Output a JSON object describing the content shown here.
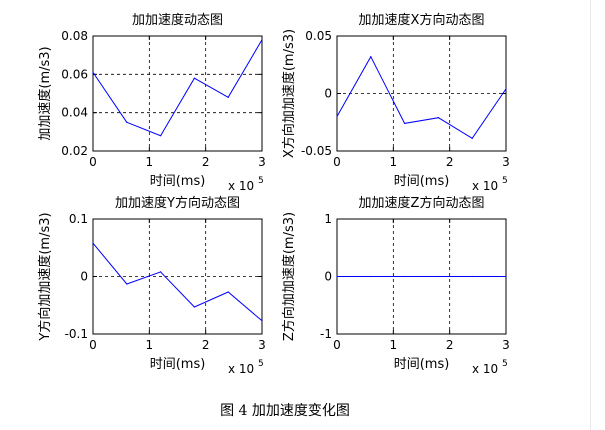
{
  "figure": {
    "caption": "图 4  加加速度变化图"
  },
  "chart_data": [
    {
      "type": "line",
      "title": "加加速度动态图",
      "xlabel": "时间(ms)",
      "ylabel": "加加速度(m/s3)",
      "x_exponent_base": "x 10",
      "x_exponent_power": "5",
      "xlim": [
        0,
        3
      ],
      "ylim": [
        0.02,
        0.08
      ],
      "xticks": [
        0,
        1,
        2,
        3
      ],
      "yticks": [
        0.02,
        0.04,
        0.06,
        0.08
      ],
      "xtick_labels": [
        "0",
        "1",
        "2",
        "3"
      ],
      "ytick_labels": [
        "0.02",
        "0.04",
        "0.06",
        "0.08"
      ],
      "grid": true,
      "series": [
        {
          "name": "加加速度",
          "color": "#0000ff",
          "x": [
            0,
            0.6,
            1.2,
            1.8,
            2.4,
            3.0
          ],
          "y": [
            0.061,
            0.035,
            0.028,
            0.058,
            0.048,
            0.078
          ]
        }
      ]
    },
    {
      "type": "line",
      "title": "加加速度X方向动态图",
      "xlabel": "时间(ms)",
      "ylabel": "X方向加加速度(m/s3)",
      "x_exponent_base": "x 10",
      "x_exponent_power": "5",
      "xlim": [
        0,
        3
      ],
      "ylim": [
        -0.05,
        0.05
      ],
      "xticks": [
        0,
        1,
        2,
        3
      ],
      "yticks": [
        -0.05,
        0,
        0.05
      ],
      "xtick_labels": [
        "0",
        "1",
        "2",
        "3"
      ],
      "ytick_labels": [
        "-0.05",
        "0",
        "0.05"
      ],
      "grid": true,
      "series": [
        {
          "name": "X方向",
          "color": "#0000ff",
          "x": [
            0,
            0.6,
            1.2,
            1.8,
            2.4,
            3.0
          ],
          "y": [
            -0.02,
            0.032,
            -0.026,
            -0.021,
            -0.039,
            0.004
          ]
        }
      ]
    },
    {
      "type": "line",
      "title": "加加速度Y方向动态图",
      "xlabel": "时间(ms)",
      "ylabel": "Y方向加加速度(m/s3)",
      "x_exponent_base": "x 10",
      "x_exponent_power": "5",
      "xlim": [
        0,
        3
      ],
      "ylim": [
        -0.1,
        0.1
      ],
      "xticks": [
        0,
        1,
        2,
        3
      ],
      "yticks": [
        -0.1,
        0,
        0.1
      ],
      "xtick_labels": [
        "0",
        "1",
        "2",
        "3"
      ],
      "ytick_labels": [
        "-0.1",
        "0",
        "0.1"
      ],
      "grid": true,
      "series": [
        {
          "name": "Y方向",
          "color": "#0000ff",
          "x": [
            0,
            0.6,
            1.2,
            1.8,
            2.4,
            3.0
          ],
          "y": [
            0.058,
            -0.013,
            0.008,
            -0.053,
            -0.027,
            -0.077
          ]
        }
      ]
    },
    {
      "type": "line",
      "title": "加加速度Z方向动态图",
      "xlabel": "时间(ms)",
      "ylabel": "Z方向加加速度(m/s3)",
      "x_exponent_base": "x 10",
      "x_exponent_power": "5",
      "xlim": [
        0,
        3
      ],
      "ylim": [
        -1,
        1
      ],
      "xticks": [
        0,
        1,
        2,
        3
      ],
      "yticks": [
        -1,
        0,
        1
      ],
      "xtick_labels": [
        "0",
        "1",
        "2",
        "3"
      ],
      "ytick_labels": [
        "-1",
        "0",
        "1"
      ],
      "grid": true,
      "series": [
        {
          "name": "Z方向",
          "color": "#0000ff",
          "x": [
            0,
            0.6,
            1.2,
            1.8,
            2.4,
            3.0
          ],
          "y": [
            0,
            0,
            0,
            0,
            0,
            0
          ]
        }
      ]
    }
  ]
}
